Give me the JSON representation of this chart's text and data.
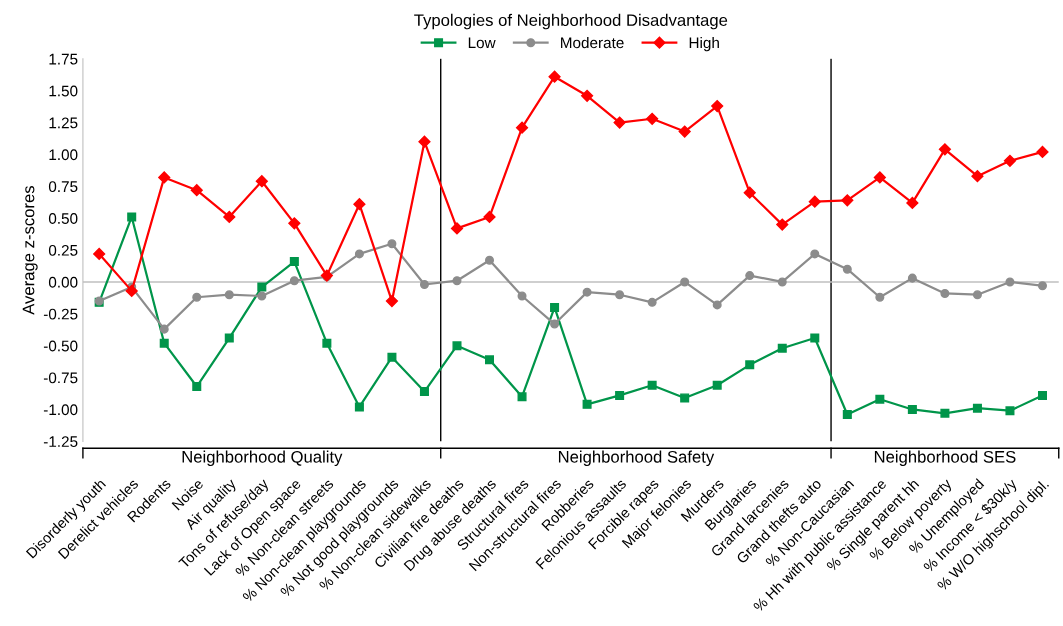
{
  "chart_data": {
    "type": "line",
    "legend_title": "Typologies of Neighborhood Disadvantage",
    "ylabel": "Average z-scores",
    "categories": [
      "Disorderly youth",
      "Derelict vehicles",
      "Rodents",
      "Noise",
      "Air quality",
      "Tons of refuse/day",
      "Lack of Open space",
      "% Non-clean streets",
      "% Non-clean playgrounds",
      "% Not good playgrounds",
      "% Non-clean sidewalks",
      "Civilian fire deaths",
      "Drug abuse deaths",
      "Structural fires",
      "Non-structural fires",
      "Robberies",
      "Felonious assaults",
      "Forcible rapes",
      "Major felonies",
      "Murders",
      "Burglaries",
      "Grand larcenies",
      "Grand thefts auto",
      "% Non-Caucasian",
      "% Hh with public assistance",
      "% Single parent hh",
      "% Below poverty",
      "% Unemployed",
      "% Income < $30k/y",
      "% W/O highschool dipl."
    ],
    "series": [
      {
        "name": "Low",
        "color": "#00954a",
        "marker": "square",
        "values": [
          -0.16,
          0.51,
          -0.48,
          -0.82,
          -0.44,
          -0.04,
          0.16,
          -0.48,
          -0.98,
          -0.59,
          -0.86,
          -0.5,
          -0.61,
          -0.9,
          -0.2,
          -0.96,
          -0.89,
          -0.81,
          -0.91,
          -0.81,
          -0.65,
          -0.52,
          -0.44,
          -1.04,
          -0.92,
          -1.0,
          -1.03,
          -0.99,
          -1.01,
          -0.89
        ]
      },
      {
        "name": "Moderate",
        "color": "#8c8c8c",
        "marker": "circle",
        "values": [
          -0.15,
          -0.04,
          -0.37,
          -0.12,
          -0.1,
          -0.11,
          0.01,
          0.04,
          0.22,
          0.3,
          -0.02,
          0.01,
          0.17,
          -0.11,
          -0.33,
          -0.08,
          -0.1,
          -0.16,
          0.0,
          -0.18,
          0.05,
          0.0,
          0.22,
          0.1,
          -0.12,
          0.03,
          -0.09,
          -0.1,
          0.0,
          -0.03
        ]
      },
      {
        "name": "High",
        "color": "#ff0000",
        "marker": "diamond",
        "values": [
          0.22,
          -0.07,
          0.82,
          0.72,
          0.51,
          0.79,
          0.46,
          0.05,
          0.61,
          -0.15,
          1.1,
          0.42,
          0.51,
          1.21,
          1.61,
          1.46,
          1.25,
          1.28,
          1.18,
          1.38,
          0.7,
          0.45,
          0.63,
          0.64,
          0.82,
          0.62,
          1.04,
          0.83,
          0.95,
          1.02
        ]
      }
    ],
    "ylim": [
      -1.25,
      1.75
    ],
    "yticks": [
      {
        "value": -1.25,
        "label": "-1.25"
      },
      {
        "value": -1.0,
        "label": "-1.00"
      },
      {
        "value": -0.75,
        "label": "-0.75"
      },
      {
        "value": -0.5,
        "label": "-0.50"
      },
      {
        "value": -0.25,
        "label": "-0.25"
      },
      {
        "value": 0.0,
        "label": "0.00"
      },
      {
        "value": 0.25,
        "label": "0.25"
      },
      {
        "value": 0.5,
        "label": "0.50"
      },
      {
        "value": 0.75,
        "label": "0.75"
      },
      {
        "value": 1.0,
        "label": "1.00"
      },
      {
        "value": 1.25,
        "label": "1.25"
      },
      {
        "value": 1.5,
        "label": "1.50"
      },
      {
        "value": 1.75,
        "label": "1.75"
      }
    ],
    "ref_lines": [
      {
        "axis": "y",
        "value": 0,
        "color": "#bfbfbf"
      }
    ],
    "annotations": [
      "Neighborhood Quality",
      "Neighborhood Safety",
      "Neighborhood SES"
    ],
    "legend": "top",
    "grid": false
  }
}
